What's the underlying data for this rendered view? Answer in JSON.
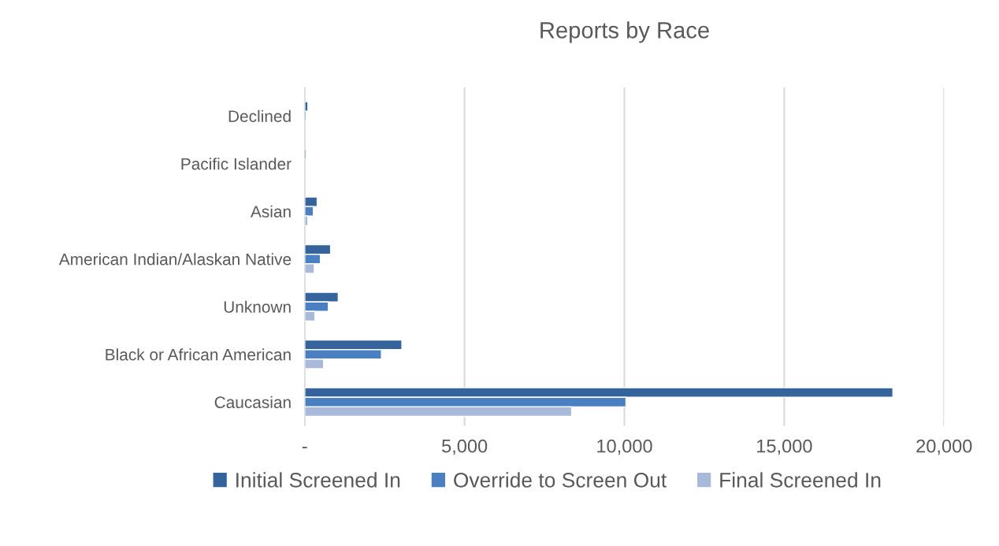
{
  "chart_data": {
    "type": "bar",
    "orientation": "horizontal",
    "title": "Reports by Race",
    "categories": [
      "Declined",
      "Pacific Islander",
      "Asian",
      "American Indian/Alaskan Native",
      "Unknown",
      "Black or African American",
      "Caucasian"
    ],
    "series": [
      {
        "name": "Initial Screened In",
        "color": "#35649d",
        "values": [
          100,
          50,
          390,
          810,
          1050,
          3040,
          18400
        ]
      },
      {
        "name": "Override to Screen Out",
        "color": "#4a7fc1",
        "values": [
          50,
          null,
          270,
          490,
          740,
          2400,
          10050
        ]
      },
      {
        "name": "Final Screened In",
        "color": "#a8b9da",
        "values": [
          null,
          null,
          100,
          300,
          320,
          590,
          8350
        ]
      }
    ],
    "xlim": [
      0,
      20000
    ],
    "xticks": [
      {
        "value": 0,
        "label": "-"
      },
      {
        "value": 5000,
        "label": "5,000"
      },
      {
        "value": 10000,
        "label": "10,000"
      },
      {
        "value": 15000,
        "label": "15,000"
      },
      {
        "value": 20000,
        "label": "20,000"
      }
    ],
    "grid": "x",
    "legend": "bottom"
  }
}
